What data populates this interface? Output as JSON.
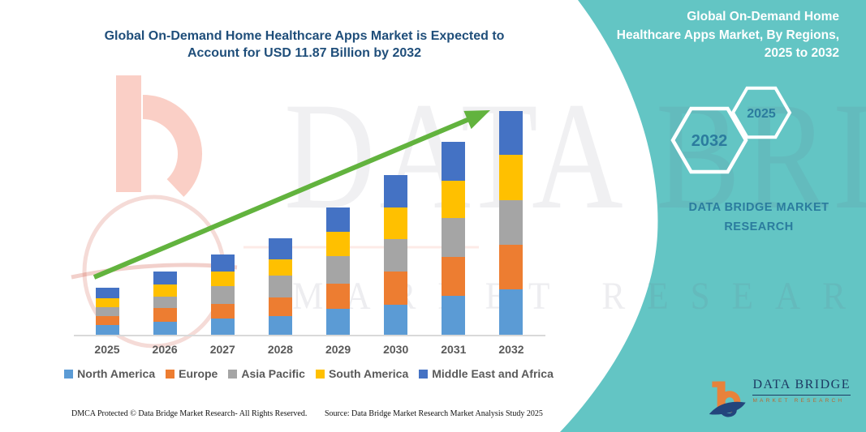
{
  "page": {
    "teal_color": "#63c5c4",
    "background_color": "#ffffff"
  },
  "chart": {
    "title_line1": "Global On-Demand Home Healthcare Apps Market is Expected to",
    "title_line2": "Account for USD 11.87 Billion by 2032",
    "title_color": "#1f4e7a"
  },
  "chart_data": {
    "type": "bar",
    "stacked": true,
    "title": "Global On-Demand Home Healthcare Apps Market is Expected to Account for USD 11.87 Billion by 2032",
    "unit": "USD Billion",
    "xlabel": "",
    "ylabel": "",
    "categories": [
      "2025",
      "2026",
      "2027",
      "2028",
      "2029",
      "2030",
      "2031",
      "2032"
    ],
    "series": [
      {
        "name": "North America",
        "color": "#5B9BD5",
        "values": [
          0.52,
          0.69,
          0.86,
          0.99,
          1.38,
          1.59,
          2.06,
          2.41
        ]
      },
      {
        "name": "Europe",
        "color": "#ED7D31",
        "values": [
          0.47,
          0.73,
          0.77,
          0.99,
          1.33,
          1.76,
          2.06,
          2.37
        ]
      },
      {
        "name": "Asia Pacific",
        "color": "#A5A5A5",
        "values": [
          0.47,
          0.6,
          0.95,
          1.16,
          1.46,
          1.72,
          2.06,
          2.37
        ]
      },
      {
        "name": "South America",
        "color": "#FFC000",
        "values": [
          0.47,
          0.65,
          0.77,
          0.86,
          1.29,
          1.68,
          1.98,
          2.41
        ]
      },
      {
        "name": "Middle East and Africa",
        "color": "#4472C4",
        "values": [
          0.56,
          0.69,
          0.9,
          1.12,
          1.29,
          1.72,
          2.06,
          2.31
        ]
      }
    ],
    "totals": [
      2.49,
      3.36,
      4.25,
      5.12,
      6.75,
      8.47,
      10.22,
      11.87
    ],
    "ylim": [
      0,
      12.6
    ],
    "grid": false,
    "legend_position": "bottom",
    "trend_arrow_color": "#62B33E",
    "axis_line_color": "#d9d9d9"
  },
  "side_panel": {
    "heading_line1": "Global On-Demand Home",
    "heading_line2": "Healthcare Apps Market, By Regions,",
    "heading_line3": "2025 to 2032",
    "hexagon_back_label": "2025",
    "hexagon_front_label": "2032",
    "brand_line1": "DATA BRIDGE MARKET",
    "brand_line2": "RESEARCH",
    "logo_title": "DATA BRIDGE",
    "logo_subtitle": "MARKET RESEARCH"
  },
  "watermark": {
    "text_main": "DATA BRIDGE",
    "text_sub": "MARKET RESEARCH"
  },
  "footer": {
    "dmca": "DMCA Protected © Data Bridge Market Research-  All Rights Reserved.",
    "source": "Source: Data Bridge Market Research  Market Analysis Study 2025"
  }
}
